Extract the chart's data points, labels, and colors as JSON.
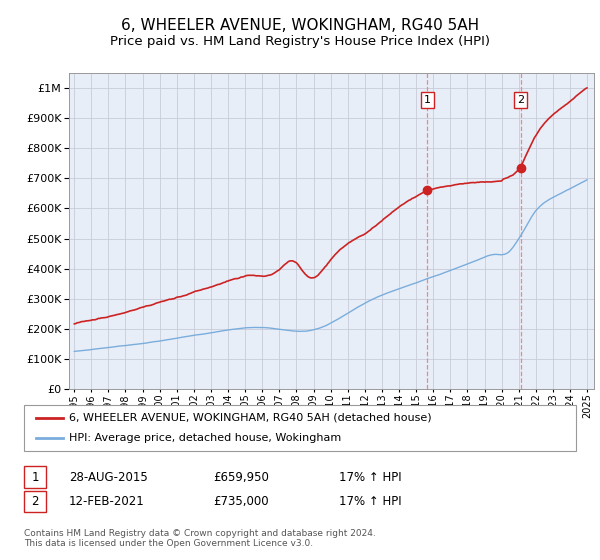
{
  "title": "6, WHEELER AVENUE, WOKINGHAM, RG40 5AH",
  "subtitle": "Price paid vs. HM Land Registry's House Price Index (HPI)",
  "legend_line1": "6, WHEELER AVENUE, WOKINGHAM, RG40 5AH (detached house)",
  "legend_line2": "HPI: Average price, detached house, Wokingham",
  "annotation1_date": "28-AUG-2015",
  "annotation1_price": "£659,950",
  "annotation1_hpi": "17% ↑ HPI",
  "annotation1_year": 2015.66,
  "annotation1_value": 659950,
  "annotation2_date": "12-FEB-2021",
  "annotation2_price": "£735,000",
  "annotation2_hpi": "17% ↑ HPI",
  "annotation2_year": 2021.12,
  "annotation2_value": 735000,
  "footer": "Contains HM Land Registry data © Crown copyright and database right 2024.\nThis data is licensed under the Open Government Licence v3.0.",
  "hpi_color": "#7aaddc",
  "price_color": "#cc2222",
  "vline_color": "#ee8888",
  "dot_color": "#cc2222",
  "bg_color": "#e8eef8",
  "grid_color": "#c8ccd8",
  "ylim_max": 1050000,
  "xlim_start": 1994.7,
  "xlim_end": 2025.4,
  "title_fontsize": 11,
  "subtitle_fontsize": 9.5,
  "yticks": [
    0,
    100000,
    200000,
    300000,
    400000,
    500000,
    600000,
    700000,
    800000,
    900000,
    1000000
  ]
}
